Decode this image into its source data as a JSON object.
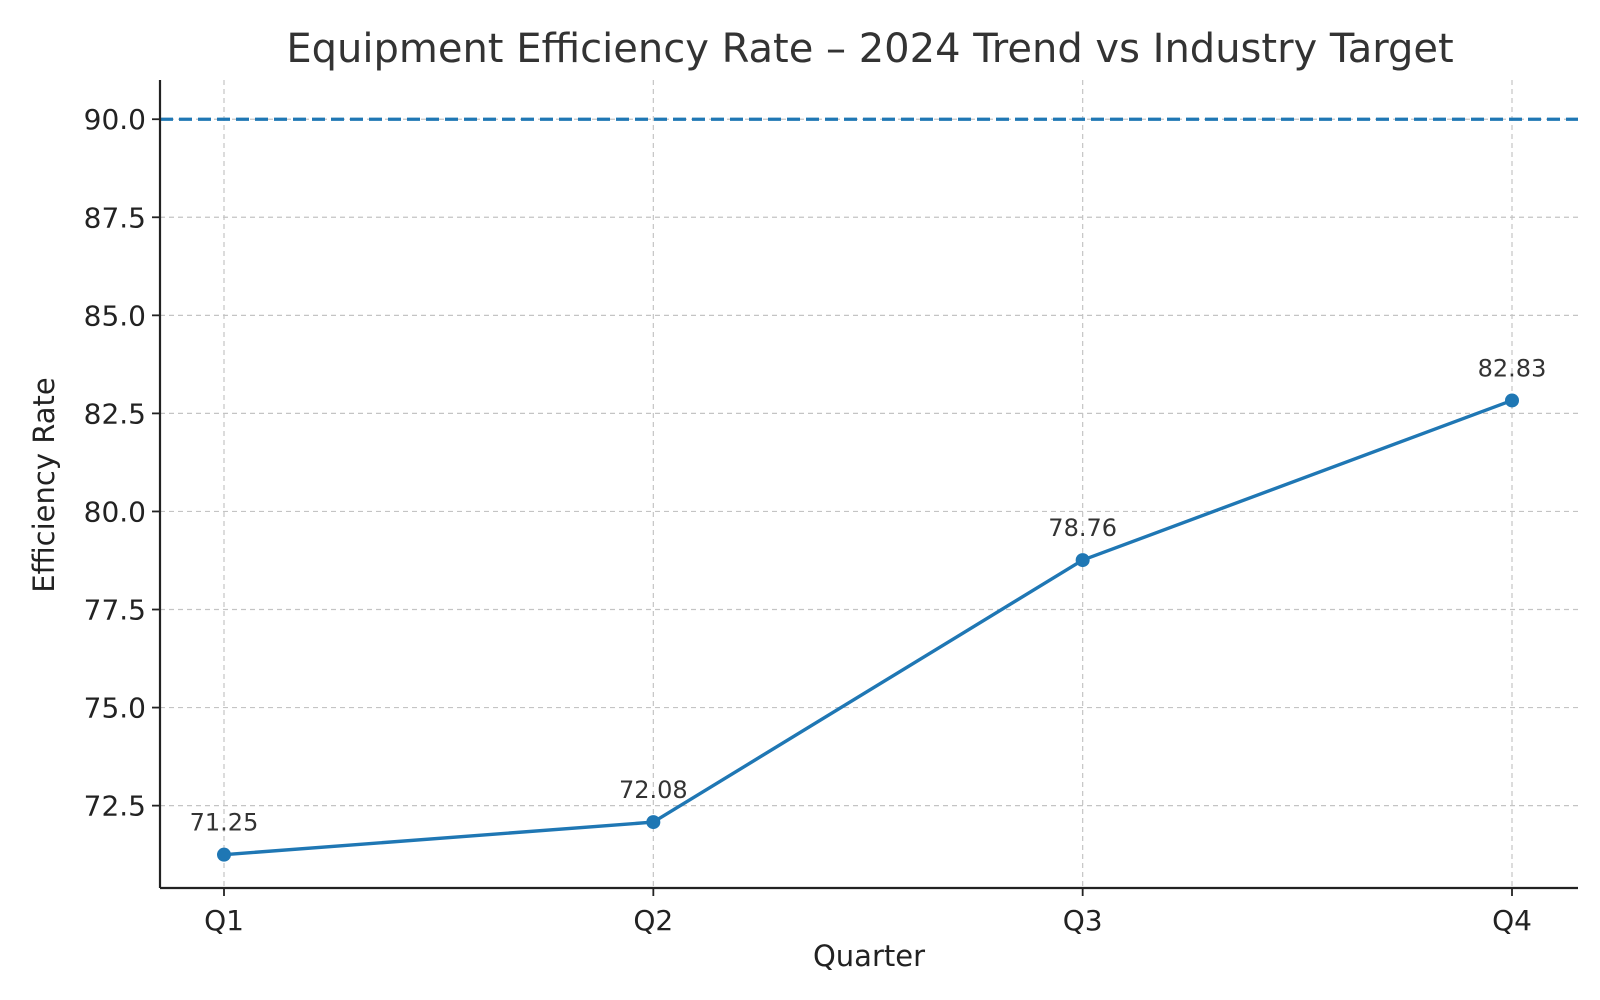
{
  "chart_data": {
    "type": "line",
    "title": "Equipment Efficiency Rate – 2024 Trend vs Industry Target",
    "xlabel": "Quarter",
    "ylabel": "Efficiency Rate",
    "categories": [
      "Q1",
      "Q2",
      "Q3",
      "Q4"
    ],
    "series": [
      {
        "values": [
          71.25,
          72.08,
          78.76,
          82.83
        ],
        "data_labels": [
          "71.25",
          "72.08",
          "78.76",
          "82.83"
        ],
        "color": "#1f77b4",
        "marker": "circle"
      }
    ],
    "reference_lines": [
      {
        "y": 90.0,
        "style": "dashed",
        "color": "#1f77b4"
      }
    ],
    "ylim": [
      70.4,
      91.0
    ],
    "yticks": [
      72.5,
      75.0,
      77.5,
      80.0,
      82.5,
      85.0,
      87.5,
      90.0
    ],
    "ytick_labels": [
      "72.5",
      "75.0",
      "77.5",
      "80.0",
      "82.5",
      "85.0",
      "87.5",
      "90.0"
    ],
    "grid": true,
    "legend": "none"
  }
}
